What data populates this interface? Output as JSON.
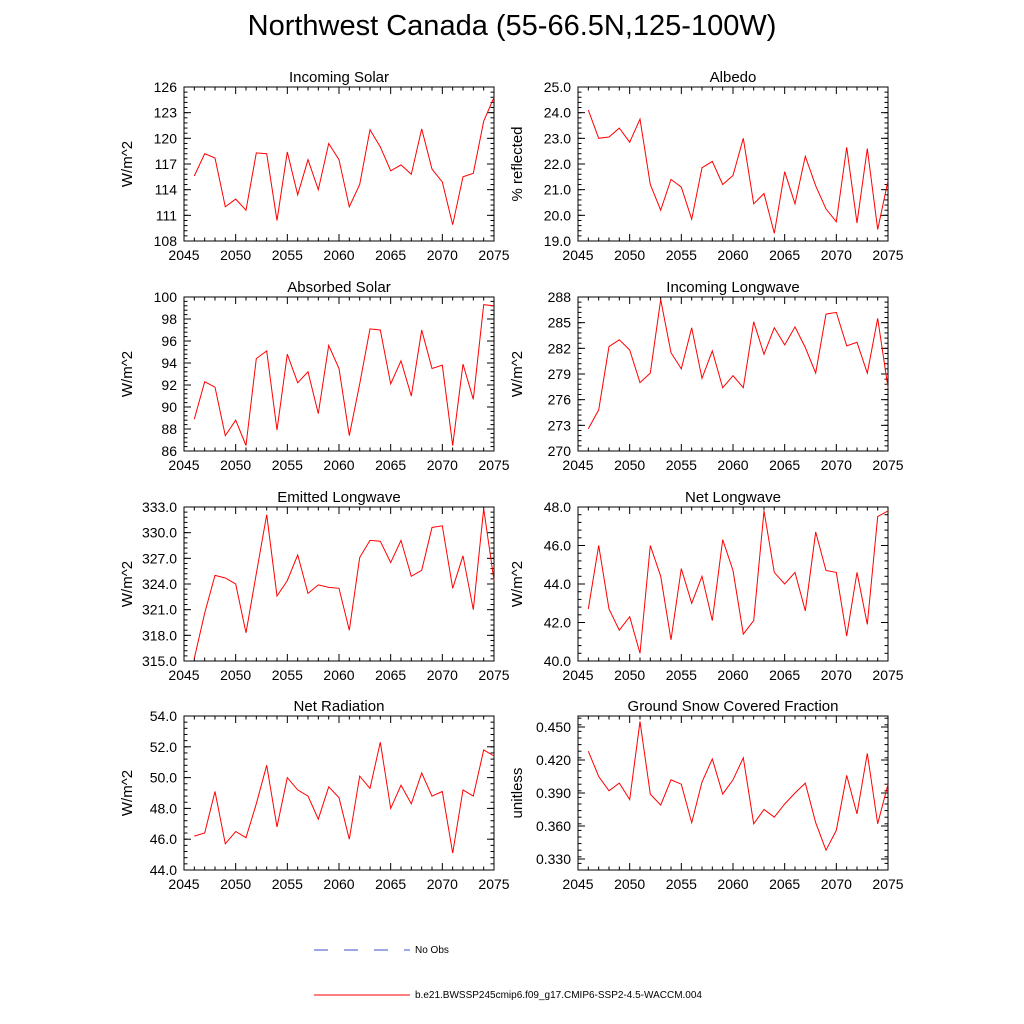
{
  "title": "Northwest Canada (55-66.5N,125-100W)",
  "series_color": "#ff0000",
  "obs_color": "#3b4fc4",
  "legend": {
    "obs_label": "No Obs",
    "model_label": "b.e21.BWSSP245cmip6.f09_g17.CMIP6-SSP2-4.5-WACCM.004"
  },
  "chart_data": [
    {
      "type": "line",
      "title": "Incoming Solar",
      "xlabel": "",
      "ylabel": "W/m^2",
      "xlim": [
        2045,
        2075
      ],
      "ylim": [
        108,
        126
      ],
      "xticks": [
        2045,
        2050,
        2055,
        2060,
        2065,
        2070,
        2075
      ],
      "yticks": [
        108,
        111,
        114,
        117,
        120,
        123,
        126
      ],
      "ytick_labels": [
        "108",
        "111",
        "114",
        "117",
        "120",
        "123",
        "126"
      ],
      "x": [
        2046,
        2047,
        2048,
        2049,
        2050,
        2051,
        2052,
        2053,
        2054,
        2055,
        2056,
        2057,
        2058,
        2059,
        2060,
        2061,
        2062,
        2063,
        2064,
        2065,
        2066,
        2067,
        2068,
        2069,
        2070,
        2071,
        2072,
        2073,
        2074,
        2075
      ],
      "values": [
        115.6,
        118.2,
        117.7,
        112.0,
        112.9,
        111.6,
        118.3,
        118.2,
        110.4,
        118.4,
        113.4,
        117.5,
        114.0,
        119.4,
        117.5,
        112.0,
        114.6,
        121.0,
        119.0,
        116.2,
        116.9,
        115.8,
        121.1,
        116.4,
        114.9,
        109.9,
        115.5,
        115.9,
        122.0,
        124.8
      ]
    },
    {
      "type": "line",
      "title": "Albedo",
      "xlabel": "",
      "ylabel": "% reflected",
      "xlim": [
        2045,
        2075
      ],
      "ylim": [
        19.0,
        25.0
      ],
      "xticks": [
        2045,
        2050,
        2055,
        2060,
        2065,
        2070,
        2075
      ],
      "yticks": [
        19,
        20,
        21,
        22,
        23,
        24,
        25
      ],
      "ytick_labels": [
        "19.0",
        "20.0",
        "21.0",
        "22.0",
        "23.0",
        "24.0",
        "25.0"
      ],
      "x": [
        2046,
        2047,
        2048,
        2049,
        2050,
        2051,
        2052,
        2053,
        2054,
        2055,
        2056,
        2057,
        2058,
        2059,
        2060,
        2061,
        2062,
        2063,
        2064,
        2065,
        2066,
        2067,
        2068,
        2069,
        2070,
        2071,
        2072,
        2073,
        2074,
        2075
      ],
      "values": [
        24.1,
        23.0,
        23.05,
        23.4,
        22.85,
        23.75,
        21.2,
        20.2,
        21.4,
        21.1,
        19.85,
        21.85,
        22.1,
        21.2,
        21.55,
        23.0,
        20.45,
        20.85,
        19.3,
        21.7,
        20.45,
        22.3,
        21.15,
        20.25,
        19.75,
        22.65,
        19.7,
        22.6,
        19.45,
        21.35
      ]
    },
    {
      "type": "line",
      "title": "Absorbed Solar",
      "xlabel": "",
      "ylabel": "W/m^2",
      "xlim": [
        2045,
        2075
      ],
      "ylim": [
        86,
        100
      ],
      "xticks": [
        2045,
        2050,
        2055,
        2060,
        2065,
        2070,
        2075
      ],
      "yticks": [
        86,
        88,
        90,
        92,
        94,
        96,
        98,
        100
      ],
      "ytick_labels": [
        "86",
        "88",
        "90",
        "92",
        "94",
        "96",
        "98",
        "100"
      ],
      "x": [
        2046,
        2047,
        2048,
        2049,
        2050,
        2051,
        2052,
        2053,
        2054,
        2055,
        2056,
        2057,
        2058,
        2059,
        2060,
        2061,
        2062,
        2063,
        2064,
        2065,
        2066,
        2067,
        2068,
        2069,
        2070,
        2071,
        2072,
        2073,
        2074,
        2075
      ],
      "values": [
        88.9,
        92.3,
        91.8,
        87.4,
        88.8,
        86.5,
        94.4,
        95.1,
        87.9,
        94.8,
        92.2,
        93.2,
        89.4,
        95.6,
        93.5,
        87.4,
        92.1,
        97.1,
        97.0,
        92.1,
        94.2,
        91.0,
        97.0,
        93.5,
        93.8,
        86.5,
        93.9,
        90.7,
        99.3,
        99.2
      ]
    },
    {
      "type": "line",
      "title": "Incoming Longwave",
      "xlabel": "",
      "ylabel": "W/m^2",
      "xlim": [
        2045,
        2075
      ],
      "ylim": [
        270,
        288
      ],
      "xticks": [
        2045,
        2050,
        2055,
        2060,
        2065,
        2070,
        2075
      ],
      "yticks": [
        270,
        273,
        276,
        279,
        282,
        285,
        288
      ],
      "ytick_labels": [
        "270",
        "273",
        "276",
        "279",
        "282",
        "285",
        "288"
      ],
      "x": [
        2046,
        2047,
        2048,
        2049,
        2050,
        2051,
        2052,
        2053,
        2054,
        2055,
        2056,
        2057,
        2058,
        2059,
        2060,
        2061,
        2062,
        2063,
        2064,
        2065,
        2066,
        2067,
        2068,
        2069,
        2070,
        2071,
        2072,
        2073,
        2074,
        2075
      ],
      "values": [
        272.6,
        274.8,
        282.2,
        283.0,
        281.8,
        278.0,
        279.1,
        287.7,
        281.5,
        279.6,
        284.4,
        278.5,
        281.7,
        277.4,
        278.8,
        277.4,
        285.1,
        281.3,
        284.4,
        282.4,
        284.5,
        282.1,
        279.1,
        286.0,
        286.2,
        282.3,
        282.7,
        279.1,
        285.5,
        277.4
      ]
    },
    {
      "type": "line",
      "title": "Emitted Longwave",
      "xlabel": "",
      "ylabel": "W/m^2",
      "xlim": [
        2045,
        2075
      ],
      "ylim": [
        315,
        333
      ],
      "xticks": [
        2045,
        2050,
        2055,
        2060,
        2065,
        2070,
        2075
      ],
      "yticks": [
        315,
        318,
        321,
        324,
        327,
        330,
        333
      ],
      "ytick_labels": [
        "315.0",
        "318.0",
        "321.0",
        "324.0",
        "327.0",
        "330.0",
        "333.0"
      ],
      "x": [
        2046,
        2047,
        2048,
        2049,
        2050,
        2051,
        2052,
        2053,
        2054,
        2055,
        2056,
        2057,
        2058,
        2059,
        2060,
        2061,
        2062,
        2063,
        2064,
        2065,
        2066,
        2067,
        2068,
        2069,
        2070,
        2071,
        2072,
        2073,
        2074,
        2075
      ],
      "values": [
        315.3,
        320.6,
        325.0,
        324.7,
        324.0,
        318.3,
        325.2,
        332.1,
        322.6,
        324.4,
        327.4,
        322.9,
        323.9,
        323.6,
        323.5,
        318.6,
        327.1,
        329.1,
        329.0,
        326.5,
        329.1,
        324.9,
        325.6,
        330.6,
        330.8,
        323.5,
        327.3,
        321.0,
        332.8,
        324.4
      ]
    },
    {
      "type": "line",
      "title": "Net Longwave",
      "xlabel": "",
      "ylabel": "W/m^2",
      "xlim": [
        2045,
        2075
      ],
      "ylim": [
        40,
        48
      ],
      "xticks": [
        2045,
        2050,
        2055,
        2060,
        2065,
        2070,
        2075
      ],
      "yticks": [
        40,
        42,
        44,
        46,
        48
      ],
      "ytick_labels": [
        "40.0",
        "42.0",
        "44.0",
        "46.0",
        "48.0"
      ],
      "x": [
        2046,
        2047,
        2048,
        2049,
        2050,
        2051,
        2052,
        2053,
        2054,
        2055,
        2056,
        2057,
        2058,
        2059,
        2060,
        2061,
        2062,
        2063,
        2064,
        2065,
        2066,
        2067,
        2068,
        2069,
        2070,
        2071,
        2072,
        2073,
        2074,
        2075
      ],
      "values": [
        42.7,
        46.0,
        42.7,
        41.6,
        42.3,
        40.4,
        46.0,
        44.4,
        41.1,
        44.8,
        43.0,
        44.4,
        42.1,
        46.3,
        44.7,
        41.4,
        42.1,
        47.8,
        44.6,
        44.0,
        44.6,
        42.6,
        46.7,
        44.7,
        44.6,
        41.3,
        44.6,
        41.9,
        47.5,
        47.8
      ]
    },
    {
      "type": "line",
      "title": "Net Radiation",
      "xlabel": "",
      "ylabel": "W/m^2",
      "xlim": [
        2045,
        2075
      ],
      "ylim": [
        44,
        54
      ],
      "xticks": [
        2045,
        2050,
        2055,
        2060,
        2065,
        2070,
        2075
      ],
      "yticks": [
        44,
        46,
        48,
        50,
        52,
        54
      ],
      "ytick_labels": [
        "44.0",
        "46.0",
        "48.0",
        "50.0",
        "52.0",
        "54.0"
      ],
      "x": [
        2046,
        2047,
        2048,
        2049,
        2050,
        2051,
        2052,
        2053,
        2054,
        2055,
        2056,
        2057,
        2058,
        2059,
        2060,
        2061,
        2062,
        2063,
        2064,
        2065,
        2066,
        2067,
        2068,
        2069,
        2070,
        2071,
        2072,
        2073,
        2074,
        2075
      ],
      "values": [
        46.2,
        46.4,
        49.1,
        45.7,
        46.5,
        46.1,
        48.3,
        50.8,
        46.8,
        50.0,
        49.2,
        48.8,
        47.3,
        49.4,
        48.7,
        46.0,
        50.1,
        49.3,
        52.3,
        48.0,
        49.5,
        48.3,
        50.3,
        48.8,
        49.1,
        45.1,
        49.2,
        48.8,
        51.8,
        51.4
      ]
    },
    {
      "type": "line",
      "title": "Ground Snow Covered Fraction",
      "xlabel": "",
      "ylabel": "unitless",
      "xlim": [
        2045,
        2075
      ],
      "ylim": [
        0.32,
        0.46
      ],
      "xticks": [
        2045,
        2050,
        2055,
        2060,
        2065,
        2070,
        2075
      ],
      "yticks": [
        0.33,
        0.36,
        0.39,
        0.42,
        0.45
      ],
      "ytick_labels": [
        "0.330",
        "0.360",
        "0.390",
        "0.420",
        "0.450"
      ],
      "x": [
        2046,
        2047,
        2048,
        2049,
        2050,
        2051,
        2052,
        2053,
        2054,
        2055,
        2056,
        2057,
        2058,
        2059,
        2060,
        2061,
        2062,
        2063,
        2064,
        2065,
        2066,
        2067,
        2068,
        2069,
        2070,
        2071,
        2072,
        2073,
        2074,
        2075
      ],
      "values": [
        0.428,
        0.405,
        0.392,
        0.399,
        0.384,
        0.455,
        0.389,
        0.379,
        0.402,
        0.398,
        0.363,
        0.4,
        0.421,
        0.389,
        0.402,
        0.422,
        0.362,
        0.375,
        0.368,
        0.38,
        0.39,
        0.399,
        0.363,
        0.338,
        0.356,
        0.406,
        0.371,
        0.426,
        0.362,
        0.398
      ]
    }
  ]
}
